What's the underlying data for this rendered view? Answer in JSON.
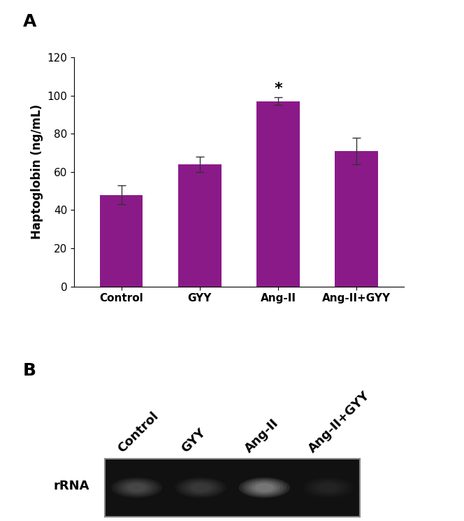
{
  "chart_data": {
    "type": "bar",
    "panel": "A",
    "y_label": "Haptoglobin (ng/mL)",
    "categories": [
      "Control",
      "GYY",
      "Ang-II",
      "Ang-II+GYY"
    ],
    "values": [
      48,
      64,
      97,
      71
    ],
    "errors": [
      5,
      4,
      2,
      7
    ],
    "color": "#8b1a89",
    "ylim": [
      0,
      120
    ],
    "yticks": [
      0,
      20,
      40,
      60,
      80,
      100,
      120
    ],
    "grid": false,
    "annotations": [
      {
        "category": "Ang-II",
        "text": "*"
      }
    ]
  },
  "gel": {
    "panel": "B",
    "row_label": "rRNA",
    "lanes": [
      "Control",
      "GYY",
      "Ang-II",
      "Ang-II+GYY"
    ]
  }
}
